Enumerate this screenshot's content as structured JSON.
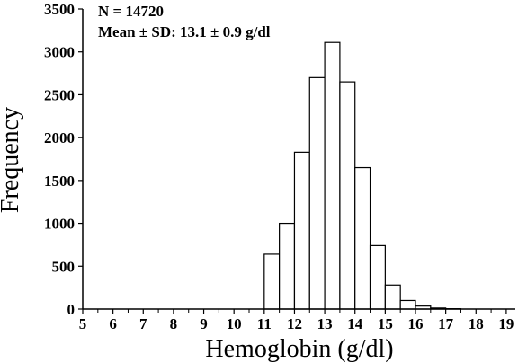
{
  "chart_data": {
    "type": "bar",
    "xlabel": "Hemoglobin (g/dl)",
    "ylabel": "Frequency",
    "annotations": [
      "N = 14720",
      "Mean ± SD: 13.1 ± 0.9 g/dl"
    ],
    "xlim": [
      5,
      19.3
    ],
    "ylim": [
      0,
      3500
    ],
    "xticks": [
      "5",
      "6",
      "7",
      "8",
      "9",
      "10",
      "11",
      "12",
      "13",
      "14",
      "15",
      "16",
      "17",
      "18",
      "19"
    ],
    "yticks": [
      "0",
      "500",
      "1000",
      "1500",
      "2000",
      "2500",
      "3000",
      "3500"
    ],
    "bin_width": 0.5,
    "bins": [
      {
        "x0": 11.0,
        "value": 640
      },
      {
        "x0": 11.5,
        "value": 1000
      },
      {
        "x0": 12.0,
        "value": 1830
      },
      {
        "x0": 12.5,
        "value": 2700
      },
      {
        "x0": 13.0,
        "value": 3110
      },
      {
        "x0": 13.5,
        "value": 2650
      },
      {
        "x0": 14.0,
        "value": 1650
      },
      {
        "x0": 14.5,
        "value": 740
      },
      {
        "x0": 15.0,
        "value": 280
      },
      {
        "x0": 15.5,
        "value": 100
      },
      {
        "x0": 16.0,
        "value": 35
      },
      {
        "x0": 16.5,
        "value": 12
      },
      {
        "x0": 17.0,
        "value": 4
      }
    ],
    "grid": false,
    "colors": {
      "bar_fill": "#ffffff",
      "bar_stroke": "#000000"
    }
  }
}
